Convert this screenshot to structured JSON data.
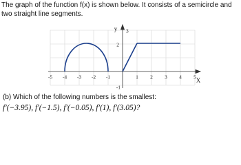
{
  "intro": "The graph of the function f(x) is shown below. It consists of a semicircle and two straight line segments.",
  "graph": {
    "x_label": "X",
    "y_label": "y",
    "x_ticks": [
      "-5",
      "-4",
      "-3",
      "-2",
      "-1",
      "1",
      "2",
      "3",
      "4",
      "5"
    ],
    "y_ticks": [
      "3",
      "2",
      "-1"
    ]
  },
  "question": {
    "prompt": "(b) Which of the following numbers is the smallest:",
    "options": "f′(−3.95), f′(−1.5), f′(−0.05), f′(1), f′(3.05)?"
  }
}
